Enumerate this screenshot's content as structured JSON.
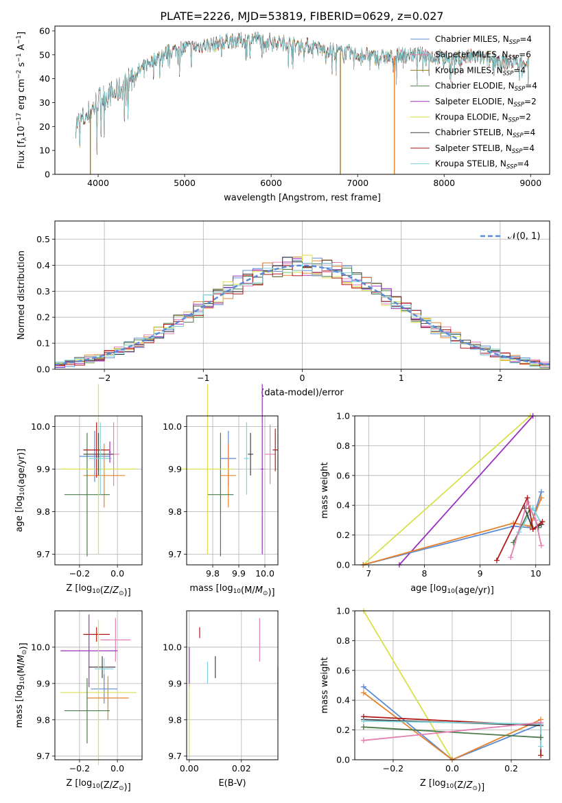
{
  "figure_title": "PLATE=2226, MJD=53819, FIBERID=0629, z=0.027",
  "colors": {
    "Chabrier MILES": "#5b8bd6",
    "Salpeter MILES": "#e57fb0",
    "Kroupa MILES": "#a07818",
    "Chabrier ELODIE": "#4a7a48",
    "Salpeter ELODIE": "#9a30c0",
    "Kroupa ELODIE": "#d8e04a",
    "Chabrier STELIB": "#404040",
    "Salpeter STELIB": "#b01818",
    "Kroupa STELIB": "#7fd4dc",
    "orange": "#e8822a",
    "normal": "#5b8bd6"
  },
  "chart_data": [
    {
      "id": "spectrum",
      "type": "line",
      "xlabel": "wavelength [Angstrom, rest frame]",
      "ylabel": "Flux [f",
      "ylabel_parts": [
        "Flux [f",
        "λ",
        "10",
        "−17",
        " erg cm",
        "−2",
        " s",
        "−1",
        " A",
        "−1",
        "]"
      ],
      "xlim": [
        3500,
        9220
      ],
      "ylim": [
        0,
        62
      ],
      "xticks": [
        4000,
        5000,
        6000,
        7000,
        8000,
        9000
      ],
      "yticks": [
        0,
        10,
        20,
        30,
        40,
        50,
        60
      ],
      "grid": false,
      "legend_position": "top-right",
      "legend": [
        {
          "name": "Chabrier MILES",
          "sub": "SSP",
          "n": "=4"
        },
        {
          "name": "Salpeter MILES",
          "sub": "SSP",
          "n": "=6"
        },
        {
          "name": "Kroupa MILES",
          "sub": "SSP",
          "n": "=4"
        },
        {
          "name": "Chabrier ELODIE",
          "sub": "SSP",
          "n": "=4"
        },
        {
          "name": "Salpeter ELODIE",
          "sub": "SSP",
          "n": "=2"
        },
        {
          "name": "Kroupa ELODIE",
          "sub": "SSP",
          "n": "=2"
        },
        {
          "name": "Chabrier STELIB",
          "sub": "SSP",
          "n": "=4"
        },
        {
          "name": "Salpeter STELIB",
          "sub": "SSP",
          "n": "=4"
        },
        {
          "name": "Kroupa STELIB",
          "sub": "SSP",
          "n": "=4"
        }
      ],
      "continuum": {
        "x": [
          3740,
          3800,
          3850,
          3900,
          3950,
          4000,
          4100,
          4200,
          4300,
          4400,
          4500,
          4600,
          4700,
          4800,
          4900,
          5000,
          5100,
          5200,
          5300,
          5400,
          5500,
          5600,
          5700,
          5800,
          5900,
          6000,
          6100,
          6200,
          6300,
          6400,
          6500,
          6600,
          6700,
          6800,
          6900,
          7000,
          7100,
          7200,
          7300,
          7400,
          7500,
          7600,
          7700,
          7800,
          7900,
          8000,
          8100,
          8200,
          8300,
          8400,
          8500,
          8600,
          8700,
          8800,
          8900,
          9000
        ],
        "y": [
          21,
          22,
          24,
          26,
          28,
          31,
          33,
          34,
          37,
          41,
          44,
          47,
          49,
          51,
          52,
          53,
          53,
          54,
          54,
          55,
          56,
          56,
          56,
          57,
          56,
          56,
          55,
          55,
          54,
          54,
          53,
          52,
          52,
          51,
          51,
          50,
          50,
          49,
          49,
          49,
          50,
          50,
          50,
          50,
          49,
          49,
          48,
          49,
          49,
          49,
          48,
          48,
          47,
          47,
          47,
          47
        ]
      },
      "drop_lines": [
        {
          "x": 3910,
          "series": "Kroupa MILES"
        },
        {
          "x": 6800,
          "series": "Kroupa MILES"
        },
        {
          "x": 7425,
          "series": "orange"
        }
      ]
    },
    {
      "id": "residual-histogram",
      "type": "line",
      "xlabel": "(data-model)/error",
      "ylabel": "Normed distribution",
      "xlim": [
        -2.5,
        2.5
      ],
      "ylim": [
        0,
        0.57
      ],
      "xticks": [
        -2,
        -1,
        0,
        1,
        2
      ],
      "yticks": [
        0.0,
        0.1,
        0.2,
        0.3,
        0.4,
        0.5
      ],
      "grid": true,
      "legend_position": "top-right",
      "legend_label": "𝒩(0, 1)",
      "bin_width": 0.1,
      "histogram_series": 9
    },
    {
      "id": "age-vs-Z",
      "type": "scatter",
      "xlabel": "Z [log10(Z/Z⊙)]",
      "ylabel": "age  [log10(age/yr)]",
      "xlim": [
        -0.33,
        0.13
      ],
      "ylim": [
        9.675,
        10.025
      ],
      "xticks": [
        -0.2,
        0.0
      ],
      "yticks": [
        9.7,
        9.8,
        9.9,
        10.0
      ],
      "grid": true,
      "points": [
        {
          "s": "Chabrier MILES",
          "x": -0.12,
          "xe": 0.08,
          "y": 9.93,
          "ye": 0.06
        },
        {
          "s": "Salpeter MILES",
          "x": -0.02,
          "xe": 0.03,
          "y": 9.935,
          "ye": 0.075
        },
        {
          "s": "orange",
          "x": -0.07,
          "xe": 0.11,
          "y": 9.885,
          "ye": 0.075
        },
        {
          "s": "Chabrier ELODIE",
          "x": -0.16,
          "xe": 0.12,
          "y": 9.84,
          "ye": 0.145
        },
        {
          "s": "Kroupa ELODIE",
          "x": -0.1,
          "xe": 0.2,
          "y": 9.9,
          "ye": 0.2
        },
        {
          "s": "Chabrier STELIB",
          "x": -0.1,
          "xe": 0.08,
          "y": 9.935,
          "ye": 0.05
        },
        {
          "s": "Salpeter STELIB",
          "x": -0.11,
          "xe": 0.07,
          "y": 9.945,
          "ye": 0.065
        },
        {
          "s": "Kroupa STELIB",
          "x": -0.09,
          "xe": 0.06,
          "y": 9.925,
          "ye": 0.085
        },
        {
          "s": "Salpeter ELODIE",
          "x": -0.04,
          "xe": 0.005,
          "y": 9.94,
          "ye": 0.025
        }
      ]
    },
    {
      "id": "age-vs-mass",
      "type": "scatter",
      "xlabel": "mass [log10(M/M⊙)]",
      "ylabel": "",
      "xlim": [
        9.7,
        10.05
      ],
      "ylim": [
        9.675,
        10.025
      ],
      "xticks": [
        9.8,
        9.9,
        10.0
      ],
      "yticks": [
        9.7,
        9.8,
        9.9,
        10.0
      ],
      "grid": true,
      "points": [
        {
          "s": "Chabrier MILES",
          "x": 9.86,
          "xe": 0.03,
          "y": 9.925,
          "ye": 0.065
        },
        {
          "s": "Salpeter MILES",
          "x": 10.02,
          "xe": 0.02,
          "y": 9.935,
          "ye": 0.07
        },
        {
          "s": "orange",
          "x": 9.86,
          "xe": 0.03,
          "y": 9.885,
          "ye": 0.075
        },
        {
          "s": "Chabrier ELODIE",
          "x": 9.83,
          "xe": 0.05,
          "y": 9.84,
          "ye": 0.145
        },
        {
          "s": "Kroupa ELODIE",
          "x": 9.78,
          "xe": 0.1,
          "y": 9.9,
          "ye": 0.2
        },
        {
          "s": "Chabrier STELIB",
          "x": 9.945,
          "xe": 0.01,
          "y": 9.935,
          "ye": 0.05
        },
        {
          "s": "Salpeter STELIB",
          "x": 10.04,
          "xe": 0.01,
          "y": 9.945,
          "ye": 0.05
        },
        {
          "s": "Kroupa STELIB",
          "x": 9.93,
          "xe": 0.01,
          "y": 9.925,
          "ye": 0.085
        },
        {
          "s": "Salpeter ELODIE",
          "x": 9.99,
          "xe": 0.005,
          "y": 9.9,
          "ye": 0.2
        }
      ]
    },
    {
      "id": "weight-vs-age",
      "type": "line",
      "xlabel": "age  [log10(age/yr)]",
      "ylabel": "mass weight",
      "xlim": [
        6.75,
        10.25
      ],
      "ylim": [
        0,
        1
      ],
      "xticks": [
        7,
        8,
        9,
        10
      ],
      "yticks": [
        0.0,
        0.2,
        0.4,
        0.6,
        0.8,
        1.0
      ],
      "grid": true,
      "series": [
        {
          "s": "Kroupa ELODIE",
          "x": [
            6.9,
            9.9
          ],
          "y": [
            0.0,
            1.0
          ]
        },
        {
          "s": "Salpeter ELODIE",
          "x": [
            7.55,
            9.95
          ],
          "y": [
            0.0,
            1.0
          ]
        },
        {
          "s": "Chabrier MILES",
          "x": [
            6.9,
            9.6,
            9.9,
            10.1
          ],
          "y": [
            0.0,
            0.26,
            0.25,
            0.49
          ]
        },
        {
          "s": "orange",
          "x": [
            6.9,
            9.6,
            9.9,
            10.1
          ],
          "y": [
            0.0,
            0.28,
            0.26,
            0.45
          ]
        },
        {
          "s": "Chabrier ELODIE",
          "x": [
            9.6,
            9.9,
            10.05
          ],
          "y": [
            0.15,
            0.38,
            0.25
          ]
        },
        {
          "s": "Kroupa STELIB",
          "x": [
            9.7,
            9.95,
            10.1
          ],
          "y": [
            0.22,
            0.38,
            0.28
          ]
        },
        {
          "s": "Chabrier STELIB",
          "x": [
            9.8,
            9.95,
            10.1
          ],
          "y": [
            0.38,
            0.24,
            0.27
          ]
        },
        {
          "s": "Salpeter STELIB",
          "x": [
            9.3,
            9.85,
            9.95,
            10.12
          ],
          "y": [
            0.03,
            0.45,
            0.24,
            0.29
          ]
        },
        {
          "s": "Salpeter MILES",
          "x": [
            9.55,
            9.85,
            10.0,
            10.1
          ],
          "y": [
            0.05,
            0.42,
            0.3,
            0.13
          ]
        }
      ]
    },
    {
      "id": "mass-vs-Z",
      "type": "scatter",
      "xlabel": "Z [log10(Z/Z⊙)]",
      "ylabel": "mass [log10(M/M⊙)]",
      "xlim": [
        -0.33,
        0.13
      ],
      "ylim": [
        9.69,
        10.1
      ],
      "xticks": [
        -0.2,
        0.0
      ],
      "yticks": [
        9.7,
        9.8,
        9.9,
        10.0
      ],
      "grid": true,
      "points": [
        {
          "s": "Salpeter STELIB",
          "x": -0.11,
          "xe": 0.07,
          "y": 10.035,
          "ye": 0.02
        },
        {
          "s": "Salpeter MILES",
          "x": -0.01,
          "xe": 0.08,
          "y": 10.02,
          "ye": 0.06
        },
        {
          "s": "Salpeter ELODIE",
          "x": -0.15,
          "xe": 0.15,
          "y": 9.99,
          "ye": 0.1
        },
        {
          "s": "Chabrier STELIB",
          "x": -0.08,
          "xe": 0.07,
          "y": 9.945,
          "ye": 0.03
        },
        {
          "s": "Kroupa STELIB",
          "x": -0.07,
          "xe": 0.05,
          "y": 9.94,
          "ye": 0.03
        },
        {
          "s": "Chabrier MILES",
          "x": -0.07,
          "xe": 0.07,
          "y": 9.885,
          "ye": 0.04
        },
        {
          "s": "Kroupa ELODIE",
          "x": -0.1,
          "xe": 0.2,
          "y": 9.875,
          "ye": 0.2
        },
        {
          "s": "orange",
          "x": -0.05,
          "xe": 0.11,
          "y": 9.86,
          "ye": 0.06
        },
        {
          "s": "Chabrier ELODIE",
          "x": -0.16,
          "xe": 0.12,
          "y": 9.825,
          "ye": 0.09
        }
      ]
    },
    {
      "id": "mass-vs-EBV",
      "type": "scatter",
      "xlabel": "E(B-V)",
      "ylabel": "",
      "xlim": [
        -0.001,
        0.034
      ],
      "ylim": [
        9.69,
        10.1
      ],
      "xticks": [
        0.0,
        0.02
      ],
      "yticks": [
        9.7,
        9.8,
        9.9,
        10.0
      ],
      "grid": true,
      "points": [
        {
          "s": "Salpeter STELIB",
          "x": 0.004,
          "xe": 0,
          "y": 10.04,
          "ye": 0.015
        },
        {
          "s": "Salpeter MILES",
          "x": 0.027,
          "xe": 0,
          "y": 10.02,
          "ye": 0.06
        },
        {
          "s": "Salpeter ELODIE",
          "x": 0.0,
          "xe": 0,
          "y": 9.945,
          "ye": 0.055
        },
        {
          "s": "Chabrier STELIB",
          "x": 0.01,
          "xe": 0,
          "y": 9.945,
          "ye": 0.03
        },
        {
          "s": "Kroupa STELIB",
          "x": 0.007,
          "xe": 0,
          "y": 9.93,
          "ye": 0.03
        },
        {
          "s": "orange",
          "x": 0.034,
          "xe": 0,
          "y": 9.875,
          "ye": 0.07
        },
        {
          "s": "Kroupa ELODIE",
          "x": 0.0,
          "xe": 0,
          "y": 9.8,
          "ye": 0.1
        }
      ]
    },
    {
      "id": "weight-vs-Z",
      "type": "line",
      "xlabel": "Z [log10(Z/Z⊙)]",
      "ylabel": "mass weight",
      "xlim": [
        -0.33,
        0.33
      ],
      "ylim": [
        0,
        1
      ],
      "xticks": [
        -0.2,
        0.0,
        0.2
      ],
      "yticks": [
        0.0,
        0.2,
        0.4,
        0.6,
        0.8,
        1.0
      ],
      "grid": true,
      "series": [
        {
          "s": "Kroupa ELODIE",
          "x": [
            -0.3,
            0.0
          ],
          "y": [
            1.0,
            0.0
          ]
        },
        {
          "s": "Chabrier MILES",
          "x": [
            -0.3,
            0.0,
            0.3
          ],
          "y": [
            0.49,
            0.0,
            0.24
          ]
        },
        {
          "s": "orange",
          "x": [
            -0.3,
            0.0,
            0.3
          ],
          "y": [
            0.45,
            0.0,
            0.27
          ]
        },
        {
          "s": "Salpeter STELIB",
          "x": [
            -0.3,
            0.3,
            0.3
          ],
          "y": [
            0.29,
            0.23,
            0.03
          ]
        },
        {
          "s": "Chabrier STELIB",
          "x": [
            -0.3,
            0.3
          ],
          "y": [
            0.27,
            0.23
          ]
        },
        {
          "s": "Kroupa STELIB",
          "x": [
            -0.3,
            0.3,
            0.3
          ],
          "y": [
            0.26,
            0.24,
            0.09
          ]
        },
        {
          "s": "Chabrier ELODIE",
          "x": [
            -0.3,
            0.3
          ],
          "y": [
            0.22,
            0.15
          ]
        },
        {
          "s": "Salpeter MILES",
          "x": [
            -0.3,
            0.3
          ],
          "y": [
            0.13,
            0.25
          ]
        }
      ]
    }
  ]
}
